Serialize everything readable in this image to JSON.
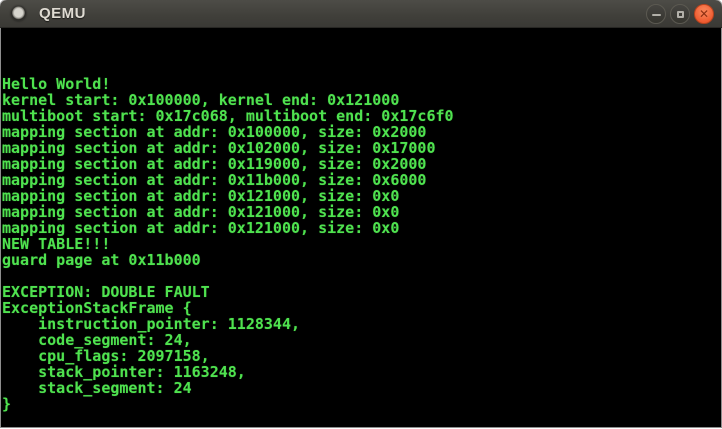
{
  "window": {
    "title": "QEMU",
    "controls": {
      "minimize_label": "minimize",
      "maximize_label": "maximize",
      "close_label": "close"
    },
    "titlebar_color": "#403f3a",
    "close_button_color": "#ef5c31"
  },
  "console": {
    "background": "#000000",
    "text_color": "#4fe24f",
    "lines": [
      "",
      "",
      "",
      "Hello World!",
      "kernel start: 0x100000, kernel end: 0x121000",
      "multiboot start: 0x17c068, multiboot end: 0x17c6f0",
      "mapping section at addr: 0x100000, size: 0x2000",
      "mapping section at addr: 0x102000, size: 0x17000",
      "mapping section at addr: 0x119000, size: 0x2000",
      "mapping section at addr: 0x11b000, size: 0x6000",
      "mapping section at addr: 0x121000, size: 0x0",
      "mapping section at addr: 0x121000, size: 0x0",
      "mapping section at addr: 0x121000, size: 0x0",
      "NEW TABLE!!!",
      "guard page at 0x11b000",
      "",
      "EXCEPTION: DOUBLE FAULT",
      "ExceptionStackFrame {",
      "    instruction_pointer: 1128344,",
      "    code_segment: 24,",
      "    cpu_flags: 2097158,",
      "    stack_pointer: 1163248,",
      "    stack_segment: 24",
      "}"
    ]
  }
}
